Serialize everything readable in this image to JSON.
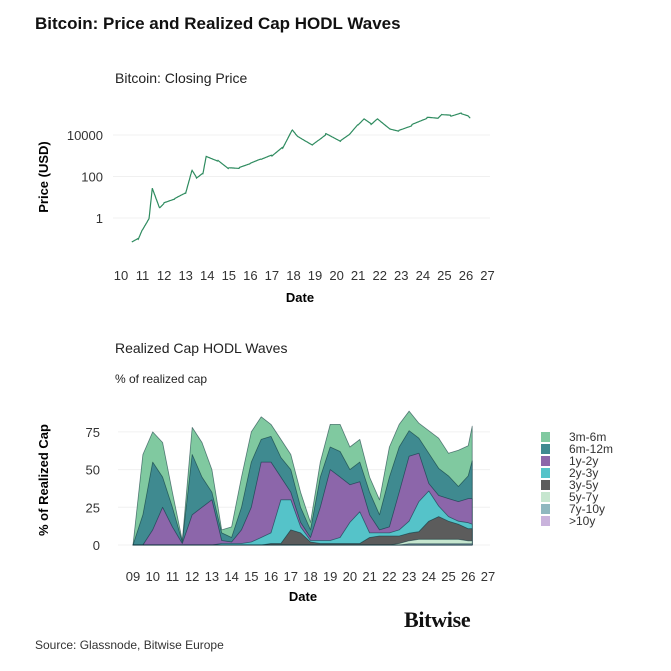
{
  "title": "Bitcoin: Price and Realized Cap HODL Waves",
  "source": "Source: Glassnode, Bitwise Europe",
  "logo": "Bitwise",
  "chart_data": [
    {
      "type": "line",
      "title": "Bitcoin: Closing Price",
      "xlabel": "Date",
      "ylabel": "Price (USD)",
      "yscale": "log",
      "grid": true,
      "color": "#2e8b5f",
      "xlim": [
        2010,
        2027
      ],
      "ylim": [
        0.02,
        300000
      ],
      "x_ticks": [
        "10",
        "11",
        "12",
        "13",
        "14",
        "15",
        "16",
        "17",
        "18",
        "19",
        "20",
        "21",
        "22",
        "23",
        "24",
        "25",
        "26",
        "27"
      ],
      "y_ticks": [
        {
          "value": 1,
          "label": "1"
        },
        {
          "value": 100,
          "label": "100"
        },
        {
          "value": 10000,
          "label": "10000"
        }
      ],
      "x": [
        2010.5,
        2010.8,
        2011.0,
        2011.3,
        2011.45,
        2011.8,
        2012.0,
        2012.5,
        2013.0,
        2013.3,
        2013.5,
        2013.8,
        2013.95,
        2014.5,
        2015.0,
        2015.5,
        2016.0,
        2016.5,
        2017.0,
        2017.5,
        2017.95,
        2018.2,
        2018.9,
        2019.5,
        2020.2,
        2020.6,
        2021.0,
        2021.3,
        2021.6,
        2021.9,
        2022.5,
        2022.9,
        2023.5,
        2024.2,
        2024.7,
        2024.9,
        2025.3,
        2025.8,
        2026.1,
        2026.2
      ],
      "y": [
        0.07,
        0.1,
        0.3,
        1,
        28,
        3,
        5,
        8,
        15,
        200,
        90,
        150,
        1000,
        600,
        250,
        250,
        400,
        650,
        1000,
        2500,
        19000,
        9000,
        3500,
        11000,
        5000,
        10000,
        30000,
        60000,
        35000,
        65000,
        20000,
        16500,
        30000,
        65000,
        60000,
        95000,
        85000,
        115000,
        90000,
        70000
      ]
    },
    {
      "type": "area",
      "stacked": true,
      "title": "Realized Cap HODL Waves",
      "subtitle": "% of realized cap",
      "xlabel": "Date",
      "ylabel": "% of Realized Cap",
      "grid": true,
      "legend": "right",
      "xlim": [
        2009,
        2027
      ],
      "ylim": [
        0,
        90
      ],
      "x_ticks": [
        "09",
        "10",
        "11",
        "12",
        "13",
        "14",
        "15",
        "16",
        "17",
        "18",
        "19",
        "20",
        "21",
        "22",
        "23",
        "24",
        "25",
        "26",
        "27"
      ],
      "y_ticks": [
        0,
        25,
        50,
        75
      ],
      "x": [
        2009.0,
        2009.5,
        2010.0,
        2010.5,
        2011.0,
        2011.5,
        2012.0,
        2012.5,
        2013.0,
        2013.5,
        2014.0,
        2014.5,
        2015.0,
        2015.5,
        2016.0,
        2016.5,
        2017.0,
        2017.5,
        2018.0,
        2018.5,
        2019.0,
        2019.5,
        2020.0,
        2020.5,
        2021.0,
        2021.5,
        2022.0,
        2022.5,
        2023.0,
        2023.5,
        2024.0,
        2024.5,
        2025.0,
        2025.5,
        2026.0,
        2026.2
      ],
      "series": [
        {
          "name": ">10y",
          "color": "#c9b3dc",
          "values": [
            0,
            0,
            0,
            0,
            0,
            0,
            0,
            0,
            0,
            0,
            0,
            0,
            0,
            0,
            0,
            0,
            0,
            0,
            0,
            0,
            0,
            0,
            0,
            0,
            0,
            0,
            0,
            0,
            0.3,
            0.3,
            0.3,
            0.3,
            0.3,
            0.3,
            0.3,
            0.3
          ]
        },
        {
          "name": "7y-10y",
          "color": "#8fb8bf",
          "values": [
            0,
            0,
            0,
            0,
            0,
            0,
            0,
            0,
            0,
            0,
            0,
            0,
            0,
            0,
            0,
            0,
            0,
            0,
            0,
            0,
            0,
            0,
            0,
            0,
            0,
            0,
            0,
            0,
            0.5,
            0.5,
            0.5,
            0.5,
            0.5,
            0.5,
            0.5,
            0.5
          ]
        },
        {
          "name": "5y-7y",
          "color": "#c6e6cf",
          "values": [
            0,
            0,
            0,
            0,
            0,
            0,
            0,
            0,
            0,
            0,
            0,
            0,
            0,
            0,
            0,
            0,
            0,
            0,
            0,
            0,
            0,
            0,
            0,
            0,
            0,
            0,
            0,
            1,
            2,
            3,
            3,
            3,
            3,
            3,
            2,
            2
          ]
        },
        {
          "name": "3y-5y",
          "color": "#5c5c5c",
          "values": [
            0,
            0,
            0,
            0,
            0,
            0,
            0,
            0,
            0,
            0,
            0,
            0,
            0,
            0,
            1,
            1,
            10,
            8,
            2,
            1,
            1,
            1,
            1,
            1,
            5,
            6,
            6,
            5,
            5,
            5,
            12,
            15,
            12,
            10,
            8,
            8
          ]
        },
        {
          "name": "2y-3y",
          "color": "#55c3c9",
          "values": [
            0,
            0,
            0,
            0,
            0,
            0,
            0,
            0,
            0,
            1,
            1,
            1,
            2,
            5,
            7,
            29,
            20,
            4,
            1,
            2,
            2,
            4,
            14,
            21,
            3,
            2,
            2,
            4,
            8,
            20,
            20,
            7,
            3,
            2,
            4,
            3
          ]
        },
        {
          "name": "1y-2y",
          "color": "#8c66aa",
          "values": [
            0,
            0,
            10,
            25,
            12,
            1,
            20,
            25,
            30,
            2,
            1,
            9,
            23,
            50,
            47,
            15,
            5,
            3,
            2,
            22,
            47,
            40,
            25,
            20,
            12,
            2,
            4,
            25,
            43,
            32,
            5,
            7,
            12,
            13,
            16,
            17
          ]
        },
        {
          "name": "6m-12m",
          "color": "#3f8a90",
          "values": [
            0,
            20,
            45,
            20,
            13,
            1,
            40,
            20,
            5,
            5,
            3,
            15,
            30,
            15,
            17,
            13,
            15,
            10,
            5,
            20,
            15,
            17,
            10,
            13,
            15,
            10,
            33,
            30,
            17,
            10,
            20,
            18,
            15,
            10,
            15,
            25
          ]
        },
        {
          "name": "3m-6m",
          "color": "#80c9a0",
          "values": [
            0,
            40,
            20,
            23,
            10,
            1,
            18,
            23,
            15,
            2,
            7,
            20,
            20,
            15,
            8,
            12,
            10,
            10,
            5,
            10,
            15,
            18,
            15,
            15,
            10,
            10,
            20,
            15,
            13,
            10,
            15,
            20,
            15,
            24,
            20,
            23
          ]
        }
      ]
    }
  ]
}
